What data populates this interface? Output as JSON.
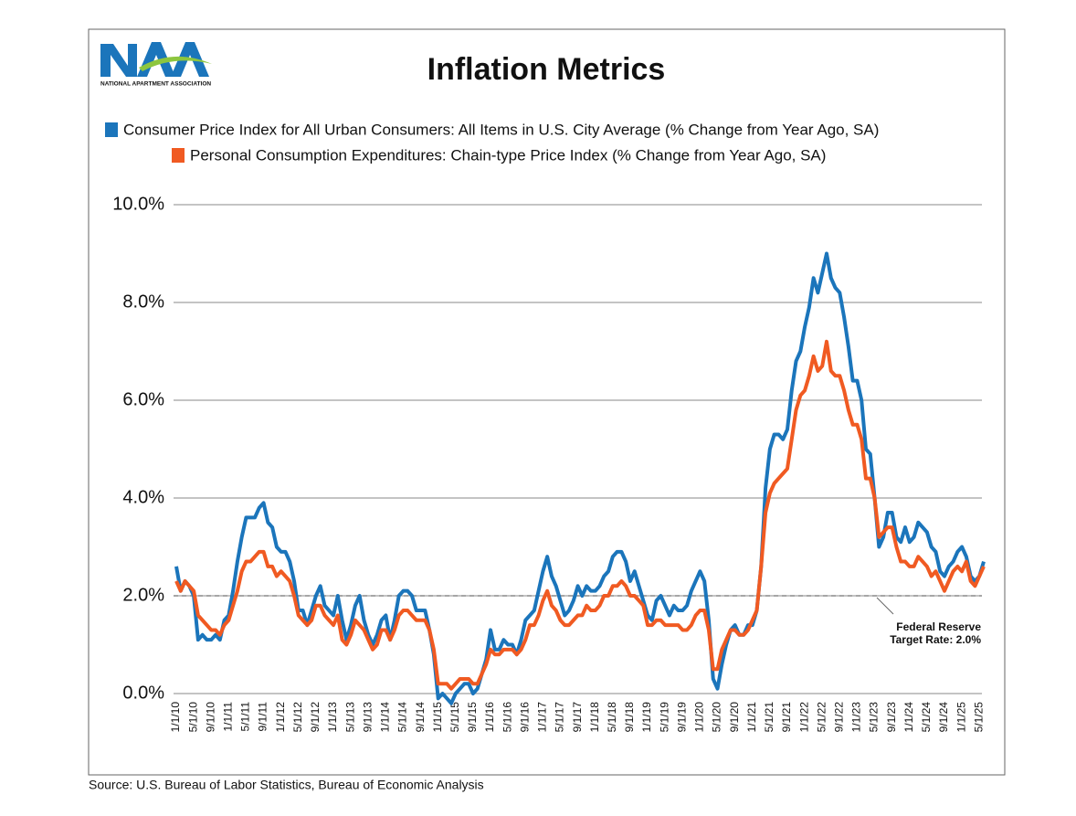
{
  "logo": {
    "subtext": "NATIONAL APARTMENT ASSOCIATION"
  },
  "chart_data": {
    "type": "line",
    "title": "Inflation Metrics",
    "source": "Source: U.S. Bureau of Labor Statistics, Bureau of Economic Analysis",
    "categories": [
      "1/1/10",
      null,
      null,
      null,
      "5/1/10",
      null,
      null,
      null,
      "9/1/10",
      null,
      null,
      null,
      "1/1/11",
      null,
      null,
      null,
      "5/1/11",
      null,
      null,
      null,
      "9/1/11",
      null,
      null,
      null,
      "1/1/12",
      null,
      null,
      null,
      "5/1/12",
      null,
      null,
      null,
      "9/1/12",
      null,
      null,
      null,
      "1/1/13",
      null,
      null,
      null,
      "5/1/13",
      null,
      null,
      null,
      "9/1/13",
      null,
      null,
      null,
      "1/1/14",
      null,
      null,
      null,
      "5/1/14",
      null,
      null,
      null,
      "9/1/14",
      null,
      null,
      null,
      "1/1/15",
      null,
      null,
      null,
      "5/1/15",
      null,
      null,
      null,
      "9/1/15",
      null,
      null,
      null,
      "1/1/16",
      null,
      null,
      null,
      "5/1/16",
      null,
      null,
      null,
      "9/1/16",
      null,
      null,
      null,
      "1/1/17",
      null,
      null,
      null,
      "5/1/17",
      null,
      null,
      null,
      "9/1/17",
      null,
      null,
      null,
      "1/1/18",
      null,
      null,
      null,
      "5/1/18",
      null,
      null,
      null,
      "9/1/18",
      null,
      null,
      null,
      "1/1/19",
      null,
      null,
      null,
      "5/1/19",
      null,
      null,
      null,
      "9/1/19",
      null,
      null,
      null,
      "1/1/20",
      null,
      null,
      null,
      "5/1/20",
      null,
      null,
      null,
      "9/1/20",
      null,
      null,
      null,
      "1/1/21",
      null,
      null,
      null,
      "5/1/21",
      null,
      null,
      null,
      "9/1/21",
      null,
      null,
      null,
      "1/1/22",
      null,
      null,
      null,
      "5/1/22",
      null,
      null,
      null,
      "9/1/22",
      null,
      null,
      null,
      "1/1/23",
      null,
      null,
      null,
      "5/1/23",
      null,
      null,
      null,
      "9/1/23",
      null,
      null,
      null,
      "1/1/24",
      null,
      null,
      null,
      "5/1/24",
      null,
      null,
      null,
      "9/1/24",
      null,
      null,
      null,
      "1/1/25",
      null,
      null,
      null,
      "5/1/25",
      null
    ],
    "series": [
      {
        "name": "Consumer Price Index for All Urban Consumers: All Items in U.S. City Average (% Change from Year Ago, SA)",
        "color": "#1b75bb",
        "values": [
          2.6,
          2.1,
          2.3,
          2.2,
          2.0,
          1.1,
          1.2,
          1.1,
          1.1,
          1.2,
          1.1,
          1.5,
          1.6,
          2.1,
          2.7,
          3.2,
          3.6,
          3.6,
          3.6,
          3.8,
          3.9,
          3.5,
          3.4,
          3.0,
          2.9,
          2.9,
          2.7,
          2.3,
          1.7,
          1.7,
          1.4,
          1.7,
          2.0,
          2.2,
          1.8,
          1.7,
          1.6,
          2.0,
          1.5,
          1.1,
          1.4,
          1.8,
          2.0,
          1.5,
          1.2,
          1.0,
          1.2,
          1.5,
          1.6,
          1.1,
          1.5,
          2.0,
          2.1,
          2.1,
          2.0,
          1.7,
          1.7,
          1.7,
          1.3,
          0.8,
          -0.1,
          0.0,
          -0.1,
          -0.2,
          0.0,
          0.1,
          0.2,
          0.2,
          0.0,
          0.1,
          0.4,
          0.7,
          1.3,
          0.9,
          0.9,
          1.1,
          1.0,
          1.0,
          0.8,
          1.1,
          1.5,
          1.6,
          1.7,
          2.1,
          2.5,
          2.8,
          2.4,
          2.2,
          1.9,
          1.6,
          1.7,
          1.9,
          2.2,
          2.0,
          2.2,
          2.1,
          2.1,
          2.2,
          2.4,
          2.5,
          2.8,
          2.9,
          2.9,
          2.7,
          2.3,
          2.5,
          2.2,
          1.9,
          1.6,
          1.5,
          1.9,
          2.0,
          1.8,
          1.6,
          1.8,
          1.7,
          1.7,
          1.8,
          2.1,
          2.3,
          2.5,
          2.3,
          1.5,
          0.3,
          0.1,
          0.6,
          1.0,
          1.3,
          1.4,
          1.2,
          1.2,
          1.4,
          1.4,
          1.7,
          2.6,
          4.2,
          5.0,
          5.3,
          5.3,
          5.2,
          5.4,
          6.2,
          6.8,
          7.0,
          7.5,
          7.9,
          8.5,
          8.2,
          8.6,
          9.0,
          8.5,
          8.3,
          8.2,
          7.7,
          7.1,
          6.4,
          6.4,
          6.0,
          5.0,
          4.9,
          4.0,
          3.0,
          3.2,
          3.7,
          3.7,
          3.2,
          3.1,
          3.4,
          3.1,
          3.2,
          3.5,
          3.4,
          3.3,
          3.0,
          2.9,
          2.5,
          2.4,
          2.6,
          2.7,
          2.9,
          3.0,
          2.8,
          2.4,
          2.3,
          2.4,
          2.7
        ]
      },
      {
        "name": "Personal Consumption Expenditures: Chain-type Price Index (% Change from Year Ago, SA)",
        "color": "#f05a22",
        "values": [
          2.3,
          2.1,
          2.3,
          2.2,
          2.1,
          1.6,
          1.5,
          1.4,
          1.3,
          1.3,
          1.2,
          1.4,
          1.5,
          1.8,
          2.1,
          2.5,
          2.7,
          2.7,
          2.8,
          2.9,
          2.9,
          2.6,
          2.6,
          2.4,
          2.5,
          2.4,
          2.3,
          2.0,
          1.6,
          1.5,
          1.4,
          1.5,
          1.8,
          1.8,
          1.6,
          1.5,
          1.4,
          1.6,
          1.1,
          1.0,
          1.2,
          1.5,
          1.4,
          1.3,
          1.1,
          0.9,
          1.0,
          1.3,
          1.3,
          1.1,
          1.3,
          1.6,
          1.7,
          1.7,
          1.6,
          1.5,
          1.5,
          1.5,
          1.3,
          0.9,
          0.2,
          0.2,
          0.2,
          0.1,
          0.2,
          0.3,
          0.3,
          0.3,
          0.2,
          0.2,
          0.4,
          0.6,
          0.9,
          0.8,
          0.8,
          0.9,
          0.9,
          0.9,
          0.8,
          0.9,
          1.1,
          1.4,
          1.4,
          1.6,
          1.9,
          2.1,
          1.8,
          1.7,
          1.5,
          1.4,
          1.4,
          1.5,
          1.6,
          1.6,
          1.8,
          1.7,
          1.7,
          1.8,
          2.0,
          2.0,
          2.2,
          2.2,
          2.3,
          2.2,
          2.0,
          2.0,
          1.9,
          1.8,
          1.4,
          1.4,
          1.5,
          1.5,
          1.4,
          1.4,
          1.4,
          1.4,
          1.3,
          1.3,
          1.4,
          1.6,
          1.7,
          1.7,
          1.3,
          0.5,
          0.5,
          0.9,
          1.1,
          1.3,
          1.3,
          1.2,
          1.2,
          1.3,
          1.5,
          1.7,
          2.6,
          3.7,
          4.1,
          4.3,
          4.4,
          4.5,
          4.6,
          5.2,
          5.8,
          6.1,
          6.2,
          6.5,
          6.9,
          6.6,
          6.7,
          7.2,
          6.6,
          6.5,
          6.5,
          6.2,
          5.8,
          5.5,
          5.5,
          5.2,
          4.4,
          4.4,
          4.0,
          3.2,
          3.3,
          3.4,
          3.4,
          3.0,
          2.7,
          2.7,
          2.6,
          2.6,
          2.8,
          2.7,
          2.6,
          2.4,
          2.5,
          2.3,
          2.1,
          2.3,
          2.5,
          2.6,
          2.5,
          2.7,
          2.3,
          2.2,
          2.4,
          2.6
        ]
      }
    ],
    "ylim": [
      0,
      10
    ],
    "yticks": [
      {
        "value": 0,
        "label": "0.0%"
      },
      {
        "value": 2,
        "label": "2.0%"
      },
      {
        "value": 4,
        "label": "4.0%"
      },
      {
        "value": 6,
        "label": "6.0%"
      },
      {
        "value": 8,
        "label": "8.0%"
      },
      {
        "value": 10,
        "label": "10.0%"
      }
    ],
    "grid": true,
    "reference_line": {
      "value": 2,
      "label": [
        "Federal Reserve",
        "Target Rate: 2.0%"
      ]
    }
  }
}
